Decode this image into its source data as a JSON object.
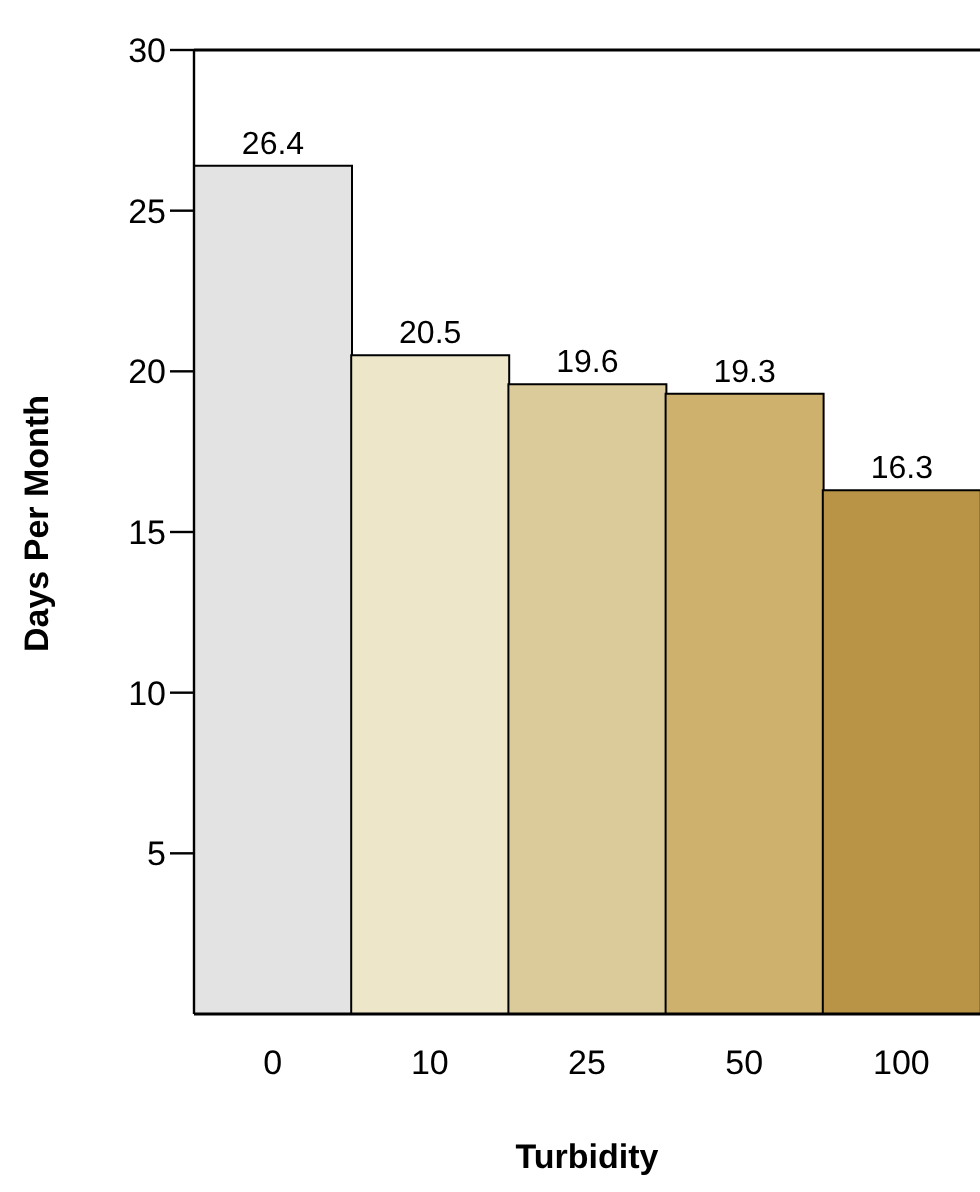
{
  "chart_data": {
    "type": "bar",
    "xlabel": "Turbidity",
    "ylabel": "Days Per Month",
    "categories": [
      "0",
      "10",
      "25",
      "50",
      "100"
    ],
    "values": [
      26.4,
      20.5,
      19.6,
      19.3,
      16.3
    ],
    "colors": [
      "#e3e3e3",
      "#ede6c9",
      "#dccb9a",
      "#cfb16e",
      "#b99447"
    ],
    "ylim": [
      0,
      30
    ],
    "yticks": [
      5,
      10,
      15,
      20,
      25,
      30
    ],
    "data_labels": true,
    "grid": false,
    "legend": false
  }
}
